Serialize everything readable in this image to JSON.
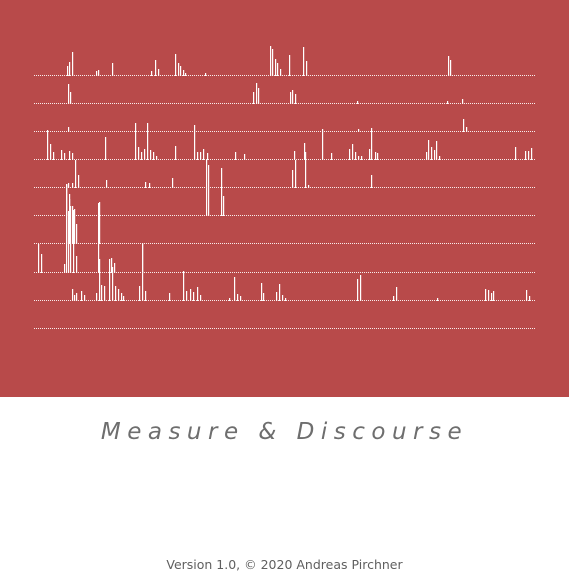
{
  "cover": {
    "background_color": "#b84a4a",
    "mark_color": "#ffffff"
  },
  "title": "Measure & Discourse",
  "footer": "Version 1.0, © 2020 Andreas Pirchner"
}
